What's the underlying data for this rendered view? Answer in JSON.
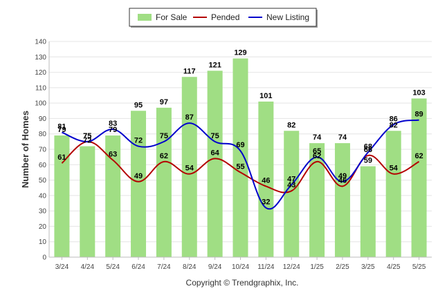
{
  "chart_data": {
    "type": "bar",
    "ylabel": "Number of Homes",
    "xlabel": "",
    "ylim": [
      0,
      140
    ],
    "ytick_step": 10,
    "grid": true,
    "legend_position": "top-center",
    "categories": [
      "3/24",
      "4/24",
      "5/24",
      "6/24",
      "7/24",
      "8/24",
      "9/24",
      "10/24",
      "11/24",
      "12/24",
      "1/25",
      "2/25",
      "3/25",
      "4/25",
      "5/25"
    ],
    "series": [
      {
        "name": "For Sale",
        "kind": "bar",
        "color": "#a0de84",
        "values": [
          79,
          72,
          79,
          95,
          97,
          117,
          121,
          129,
          101,
          82,
          74,
          74,
          59,
          82,
          103
        ]
      },
      {
        "name": "Pended",
        "kind": "line",
        "color": "#b40000",
        "values": [
          61,
          75,
          63,
          49,
          62,
          54,
          64,
          55,
          46,
          43,
          62,
          46,
          66,
          54,
          62
        ]
      },
      {
        "name": "New Listing",
        "kind": "line",
        "color": "#0000cc",
        "values": [
          81,
          75,
          83,
          72,
          75,
          87,
          75,
          69,
          32,
          47,
          65,
          49,
          68,
          86,
          89
        ]
      }
    ],
    "credit": "Copyright © Trendgraphix, Inc."
  }
}
